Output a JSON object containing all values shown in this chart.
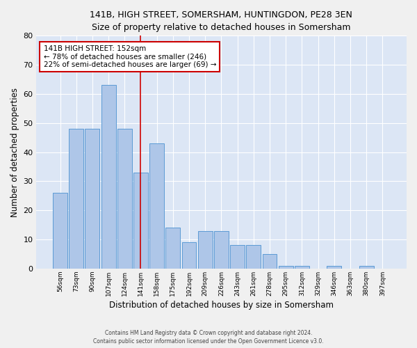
{
  "title_line1": "141B, HIGH STREET, SOMERSHAM, HUNTINGDON, PE28 3EN",
  "title_line2": "Size of property relative to detached houses in Somersham",
  "xlabel": "Distribution of detached houses by size in Somersham",
  "ylabel": "Number of detached properties",
  "footer_line1": "Contains HM Land Registry data © Crown copyright and database right 2024.",
  "footer_line2": "Contains public sector information licensed under the Open Government Licence v3.0.",
  "categories": [
    "56sqm",
    "73sqm",
    "90sqm",
    "107sqm",
    "124sqm",
    "141sqm",
    "158sqm",
    "175sqm",
    "192sqm",
    "209sqm",
    "226sqm",
    "243sqm",
    "261sqm",
    "278sqm",
    "295sqm",
    "312sqm",
    "329sqm",
    "346sqm",
    "363sqm",
    "380sqm",
    "397sqm"
  ],
  "values": [
    26,
    48,
    48,
    63,
    48,
    33,
    43,
    14,
    9,
    13,
    13,
    8,
    8,
    5,
    1,
    1,
    0,
    1,
    0,
    1,
    0
  ],
  "bar_color": "#aec6e8",
  "bar_edge_color": "#5b9bd5",
  "background_color": "#dce6f5",
  "grid_color": "#ffffff",
  "property_line_color": "#cc0000",
  "annotation_text_line1": "141B HIGH STREET: 152sqm",
  "annotation_text_line2": "← 78% of detached houses are smaller (246)",
  "annotation_text_line3": "22% of semi-detached houses are larger (69) →",
  "annotation_box_color": "#cc0000",
  "ylim": [
    0,
    80
  ],
  "yticks": [
    0,
    10,
    20,
    30,
    40,
    50,
    60,
    70,
    80
  ],
  "fig_bg": "#f0f0f0",
  "title_fontsize": 9,
  "subtitle_fontsize": 8.5
}
